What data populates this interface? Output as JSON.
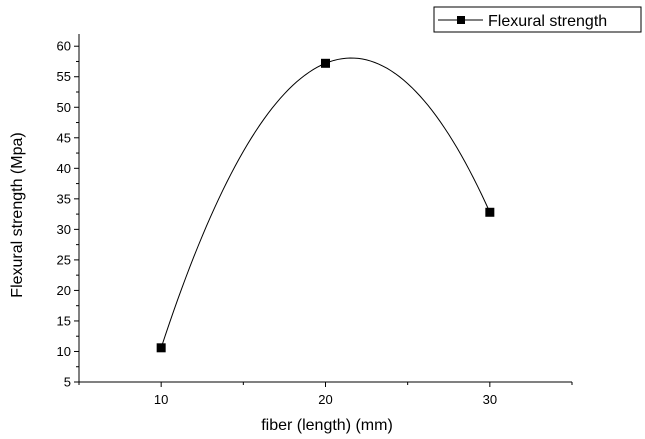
{
  "chart_data": {
    "type": "line",
    "xlabel": "fiber (length) (mm)",
    "ylabel": "Flexural strength (Mpa)",
    "xlim": [
      5,
      35
    ],
    "ylim": [
      5,
      62
    ],
    "x_ticks": [
      "10",
      "20",
      "30"
    ],
    "y_ticks": [
      "5",
      "10",
      "15",
      "20",
      "25",
      "30",
      "35",
      "40",
      "45",
      "50",
      "55",
      "60"
    ],
    "legend": {
      "position": "top-right",
      "label": "Flexural strength"
    },
    "series": [
      {
        "name": "Flexural strength",
        "x": [
          10,
          20,
          30
        ],
        "y": [
          10.6,
          57.2,
          32.8
        ],
        "marker": "square",
        "color": "#000000",
        "curve": "spline"
      }
    ]
  }
}
